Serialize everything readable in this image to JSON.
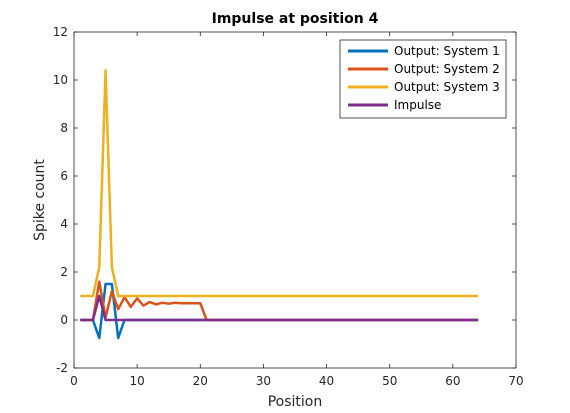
{
  "chart_data": {
    "type": "line",
    "title": "Impulse at position 4",
    "xlabel": "Position",
    "ylabel": "Spike count",
    "xlim": [
      0,
      70
    ],
    "ylim": [
      -2,
      12
    ],
    "xticks": [
      0,
      10,
      20,
      30,
      40,
      50,
      60,
      70
    ],
    "yticks": [
      -2,
      0,
      2,
      4,
      6,
      8,
      10,
      12
    ],
    "grid": false,
    "legend_position": "top-right",
    "series": [
      {
        "name": "Output: System 1",
        "color": "#0072BD",
        "x": [
          1,
          2,
          3,
          4,
          5,
          6,
          7,
          8,
          9,
          10,
          64
        ],
        "y": [
          0,
          0,
          0,
          -0.75,
          1.5,
          1.5,
          -0.75,
          0,
          0,
          0,
          0
        ]
      },
      {
        "name": "Output: System 2",
        "color": "#D95319",
        "x": [
          1,
          2,
          3,
          4,
          5,
          6,
          7,
          8,
          9,
          10,
          11,
          12,
          13,
          14,
          15,
          16,
          17,
          18,
          19,
          20,
          21,
          22,
          64
        ],
        "y": [
          0,
          0,
          0,
          1.6,
          0.1,
          1.2,
          0.45,
          0.95,
          0.55,
          0.9,
          0.6,
          0.75,
          0.65,
          0.72,
          0.68,
          0.72,
          0.7,
          0.7,
          0.7,
          0.7,
          0,
          0,
          0
        ]
      },
      {
        "name": "Output: System 3",
        "color": "#EDB120",
        "x": [
          1,
          2,
          3,
          4,
          5,
          6,
          7,
          8,
          64
        ],
        "y": [
          1,
          1,
          1,
          2.2,
          10.4,
          2.2,
          1,
          1,
          1
        ]
      },
      {
        "name": "Impulse",
        "color": "#7E2F8E",
        "x": [
          1,
          2,
          3,
          4,
          5,
          6,
          64
        ],
        "y": [
          0,
          0,
          0,
          1,
          0,
          0,
          0
        ]
      }
    ]
  }
}
